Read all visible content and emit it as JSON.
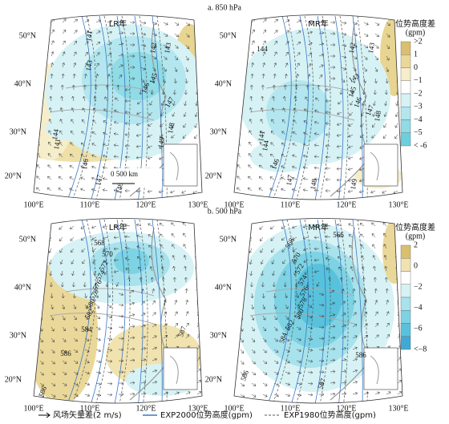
{
  "panels": [
    {
      "title": "a. 850 hPa",
      "maps": [
        {
          "label": "LR年",
          "contour_labels": [
            "141",
            "143",
            "142",
            "143",
            "145",
            "146",
            "147",
            "148",
            "149",
            "144",
            "141",
            "146",
            "147",
            "148"
          ],
          "scale": "0   500 km"
        },
        {
          "label": "MR年",
          "contour_labels": [
            "144",
            "142",
            "143",
            "143",
            "145",
            "146",
            "147",
            "148",
            "141",
            "144",
            "146",
            "147",
            "148",
            "149"
          ]
        }
      ],
      "colorbar": {
        "title": "位势高度差",
        "unit": "(gpm)",
        "ticks": [
          ">2",
          "1",
          "0",
          "−1",
          "−2",
          "−3",
          "−4",
          "−5",
          "< -6"
        ],
        "colors": [
          "#d9bf6e",
          "#ead89a",
          "#f6eecb",
          "#ffffff",
          "#d6f2f5",
          "#b3e6ee",
          "#8fdbe6",
          "#6ccfe0"
        ]
      }
    },
    {
      "title": "b. 500 hPa",
      "maps": [
        {
          "label": "LR年",
          "contour_labels": [
            "568",
            "570",
            "572",
            "574",
            "576",
            "578",
            "580",
            "582",
            "584",
            "586",
            "587",
            "586"
          ]
        },
        {
          "label": "MR年",
          "contour_labels": [
            "568",
            "566",
            "570",
            "572",
            "574",
            "576",
            "578",
            "580",
            "582",
            "584",
            "586",
            "586",
            "587"
          ]
        }
      ],
      "colorbar": {
        "title": "位势高度差",
        "unit": "(gpm)",
        "ticks": [
          "2",
          "0",
          "−2",
          "−4",
          "−6",
          "<−8"
        ],
        "colors": [
          "#d9bf6e",
          "#f1e3b0",
          "#ffffff",
          "#d6f2f5",
          "#a8e2ec",
          "#7dd3e3",
          "#58c2dc",
          "#3fa9d6"
        ]
      }
    }
  ],
  "lat_labels": [
    "50°N",
    "40°N",
    "30°N",
    "20°N"
  ],
  "lon_labels": [
    "100°E",
    "110°E",
    "120°E",
    "130°E"
  ],
  "legend": [
    "风场矢量差(2 m/s)",
    "EXP2000位势高度(gpm)",
    "EXP1980位势高度(gpm)"
  ]
}
